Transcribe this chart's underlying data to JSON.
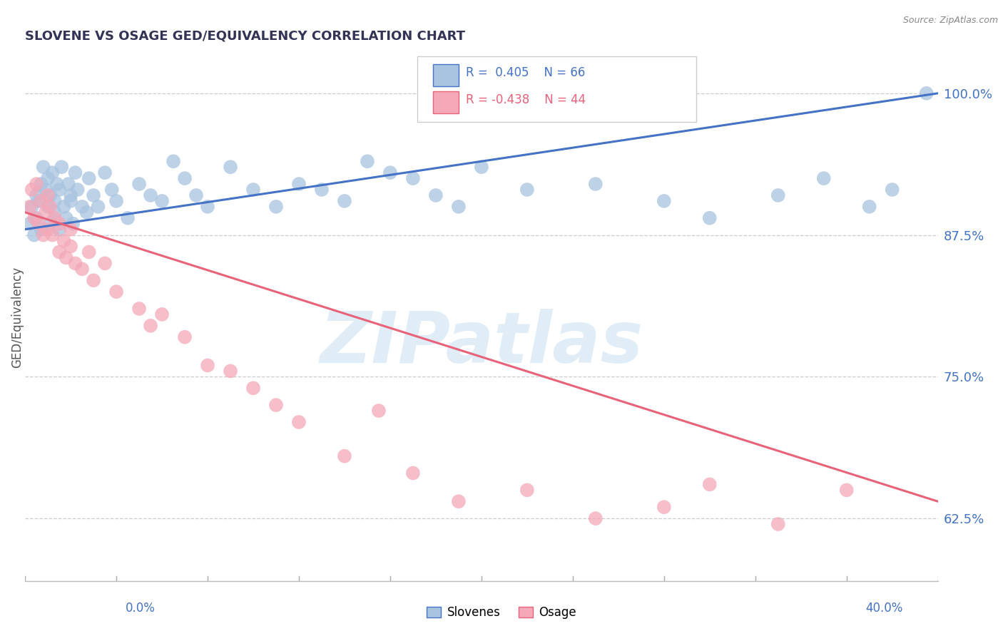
{
  "title": "SLOVENE VS OSAGE GED/EQUIVALENCY CORRELATION CHART",
  "ylabel": "GED/Equivalency",
  "source": "Source: ZipAtlas.com",
  "x_min": 0.0,
  "x_max": 40.0,
  "y_min": 57.0,
  "y_max": 103.5,
  "y_ticks": [
    62.5,
    75.0,
    87.5,
    100.0
  ],
  "slovene_R": 0.405,
  "slovene_N": 66,
  "osage_R": -0.438,
  "osage_N": 44,
  "slovene_color": "#a8c4e0",
  "osage_color": "#f4a8b8",
  "slovene_line_color": "#4472c4",
  "osage_line_color": "#e8637a",
  "watermark_color": "#c8dff0",
  "slovene_line_y0": 88.0,
  "slovene_line_y1": 100.0,
  "osage_line_y0": 89.5,
  "osage_line_y1": 64.0,
  "slov_x": [
    0.2,
    0.3,
    0.4,
    0.5,
    0.5,
    0.6,
    0.7,
    0.7,
    0.8,
    0.9,
    1.0,
    1.0,
    1.1,
    1.1,
    1.2,
    1.3,
    1.3,
    1.4,
    1.5,
    1.5,
    1.6,
    1.7,
    1.8,
    1.9,
    2.0,
    2.0,
    2.1,
    2.2,
    2.3,
    2.5,
    2.7,
    2.8,
    3.0,
    3.2,
    3.5,
    3.8,
    4.0,
    4.5,
    5.0,
    5.5,
    6.0,
    6.5,
    7.0,
    7.5,
    8.0,
    9.0,
    10.0,
    11.0,
    12.0,
    13.0,
    14.0,
    15.0,
    16.0,
    17.0,
    18.0,
    19.0,
    20.0,
    22.0,
    25.0,
    28.0,
    30.0,
    33.0,
    35.0,
    37.0,
    38.0,
    39.5
  ],
  "slov_y": [
    88.5,
    90.0,
    87.5,
    91.0,
    89.0,
    90.5,
    92.0,
    88.0,
    93.5,
    91.5,
    90.0,
    92.5,
    88.5,
    91.0,
    93.0,
    89.5,
    90.5,
    92.0,
    88.0,
    91.5,
    93.5,
    90.0,
    89.0,
    92.0,
    91.0,
    90.5,
    88.5,
    93.0,
    91.5,
    90.0,
    89.5,
    92.5,
    91.0,
    90.0,
    93.0,
    91.5,
    90.5,
    89.0,
    92.0,
    91.0,
    90.5,
    94.0,
    92.5,
    91.0,
    90.0,
    93.5,
    91.5,
    90.0,
    92.0,
    91.5,
    90.5,
    94.0,
    93.0,
    92.5,
    91.0,
    90.0,
    93.5,
    91.5,
    92.0,
    90.5,
    89.0,
    91.0,
    92.5,
    90.0,
    91.5,
    100.0
  ],
  "osage_x": [
    0.2,
    0.3,
    0.4,
    0.5,
    0.6,
    0.7,
    0.8,
    0.9,
    1.0,
    1.0,
    1.1,
    1.2,
    1.3,
    1.5,
    1.5,
    1.7,
    1.8,
    2.0,
    2.0,
    2.2,
    2.5,
    2.8,
    3.0,
    3.5,
    4.0,
    5.0,
    5.5,
    6.0,
    7.0,
    8.0,
    9.0,
    10.0,
    11.0,
    12.0,
    14.0,
    15.5,
    17.0,
    19.0,
    22.0,
    25.0,
    28.0,
    30.0,
    33.0,
    36.0
  ],
  "osage_y": [
    90.0,
    91.5,
    89.0,
    92.0,
    88.5,
    90.5,
    87.5,
    89.5,
    91.0,
    88.0,
    90.0,
    87.5,
    89.0,
    88.5,
    86.0,
    87.0,
    85.5,
    88.0,
    86.5,
    85.0,
    84.5,
    86.0,
    83.5,
    85.0,
    82.5,
    81.0,
    79.5,
    80.5,
    78.5,
    76.0,
    75.5,
    74.0,
    72.5,
    71.0,
    68.0,
    72.0,
    66.5,
    64.0,
    65.0,
    62.5,
    63.5,
    65.5,
    62.0,
    65.0
  ]
}
